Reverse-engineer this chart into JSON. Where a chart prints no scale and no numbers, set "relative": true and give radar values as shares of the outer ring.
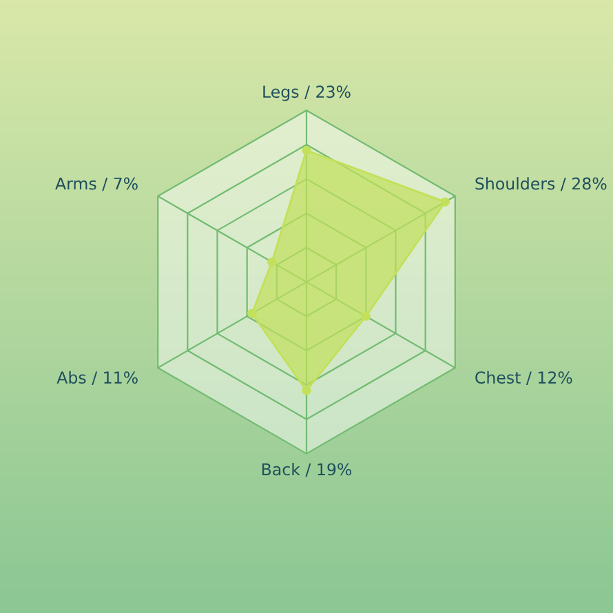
{
  "chart_data": {
    "type": "radar",
    "relative": true,
    "categories": [
      "Legs / 23%",
      "Shoulders / 28%",
      "Chest / 12%",
      "Back / 19%",
      "Abs / 11%",
      "Arms / 7%"
    ],
    "series": [
      {
        "color": "#c2e05a",
        "values": [
          0.767,
          0.933,
          0.4,
          0.633,
          0.367,
          0.233
        ]
      }
    ],
    "marker": "circle"
  }
}
